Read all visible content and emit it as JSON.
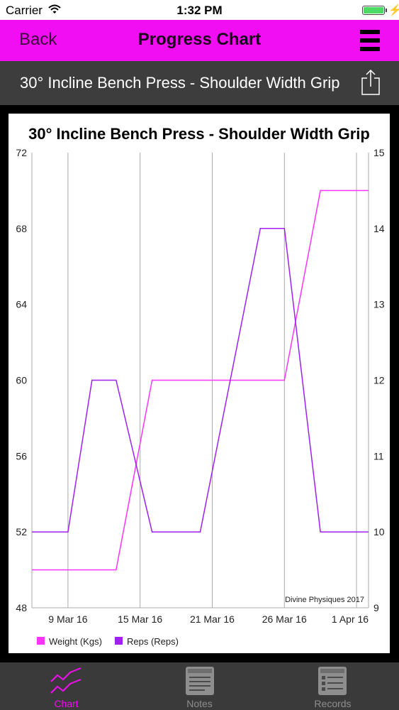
{
  "status_bar": {
    "carrier": "Carrier",
    "time": "1:32 PM"
  },
  "nav": {
    "back_label": "Back",
    "title": "Progress Chart"
  },
  "exercise_title": "30° Incline Bench Press - Shoulder Width Grip",
  "chart_data": {
    "type": "line",
    "title": "30° Incline Bench Press - Shoulder Width Grip",
    "x_tick_labels": [
      "9 Mar 16",
      "15 Mar 16",
      "21 Mar 16",
      "26 Mar 16",
      "1 Apr 16"
    ],
    "y_left": {
      "ticks": [
        48,
        52,
        56,
        60,
        64,
        68,
        72
      ],
      "range": [
        48,
        72
      ]
    },
    "y_right": {
      "ticks": [
        9,
        10,
        11,
        12,
        13,
        14,
        15
      ],
      "range": [
        9,
        15
      ]
    },
    "x_range": [
      "2016-03-06",
      "2016-04-03"
    ],
    "grid_dates": [
      "2016-03-09",
      "2016-03-15",
      "2016-03-21",
      "2016-03-27",
      "2016-04-02"
    ],
    "series": [
      {
        "name": "Weight (Kgs)",
        "axis": "left",
        "color": "#ff33ff",
        "x": [
          "2016-03-06",
          "2016-03-13",
          "2016-03-16",
          "2016-03-27",
          "2016-03-30",
          "2016-04-03"
        ],
        "values": [
          50,
          50,
          60,
          60,
          70,
          70
        ]
      },
      {
        "name": "Reps (Reps)",
        "axis": "right",
        "color": "#a020f0",
        "x": [
          "2016-03-06",
          "2016-03-09",
          "2016-03-11",
          "2016-03-13",
          "2016-03-16",
          "2016-03-20",
          "2016-03-25",
          "2016-03-27",
          "2016-03-30",
          "2016-04-03"
        ],
        "values": [
          10,
          10,
          12,
          12,
          10,
          10,
          14,
          14,
          10,
          10
        ]
      }
    ],
    "watermark": "Divine Physiques 2017",
    "legend_position": "bottom-left"
  },
  "tabs": [
    {
      "label": "Chart",
      "icon": "chart-icon",
      "active": true
    },
    {
      "label": "Notes",
      "icon": "notes-icon",
      "active": false
    },
    {
      "label": "Records",
      "icon": "records-icon",
      "active": false
    }
  ],
  "colors": {
    "accent": "#f20ef2",
    "weight": "#ff33ff",
    "reps": "#a020f0",
    "tab_inactive": "#8e8e8e"
  }
}
